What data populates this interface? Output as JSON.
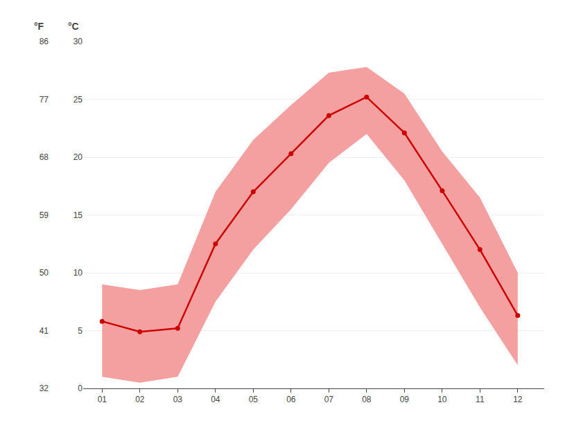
{
  "chart_data": {
    "type": "line",
    "x": [
      1,
      2,
      3,
      4,
      5,
      6,
      7,
      8,
      9,
      10,
      11,
      12
    ],
    "xlim": [
      0.5,
      12.7
    ],
    "xticks": [
      {
        "value": 1,
        "label": "01"
      },
      {
        "value": 2,
        "label": "02"
      },
      {
        "value": 3,
        "label": "03"
      },
      {
        "value": 4,
        "label": "04"
      },
      {
        "value": 5,
        "label": "05"
      },
      {
        "value": 6,
        "label": "06"
      },
      {
        "value": 7,
        "label": "07"
      },
      {
        "value": 8,
        "label": "08"
      },
      {
        "value": 9,
        "label": "09"
      },
      {
        "value": 10,
        "label": "10"
      },
      {
        "value": 11,
        "label": "11"
      },
      {
        "value": 12,
        "label": "12"
      }
    ],
    "ylabel": "°C",
    "ylim": [
      0,
      30
    ],
    "yticks": [
      0,
      5,
      10,
      15,
      20,
      25,
      30
    ],
    "y2label": "°F",
    "y2lim": [
      32,
      86
    ],
    "y2ticks": [
      32,
      41,
      50,
      59,
      68,
      77,
      86
    ],
    "grid": true,
    "series": [
      {
        "type": "band",
        "color": "#f5a0a0",
        "lower": [
          1.0,
          0.5,
          1.0,
          7.5,
          12.0,
          15.5,
          19.5,
          22.0,
          18.0,
          12.5,
          7.0,
          2.0
        ],
        "upper": [
          9.0,
          8.5,
          9.0,
          17.0,
          21.5,
          24.5,
          27.3,
          27.8,
          25.5,
          20.5,
          16.5,
          10.0
        ]
      },
      {
        "type": "line",
        "color": "#cc0000",
        "marker": "circle",
        "values": [
          5.8,
          4.9,
          5.2,
          12.5,
          17.0,
          20.3,
          23.6,
          25.2,
          22.1,
          17.1,
          12.0,
          6.3
        ]
      }
    ]
  }
}
